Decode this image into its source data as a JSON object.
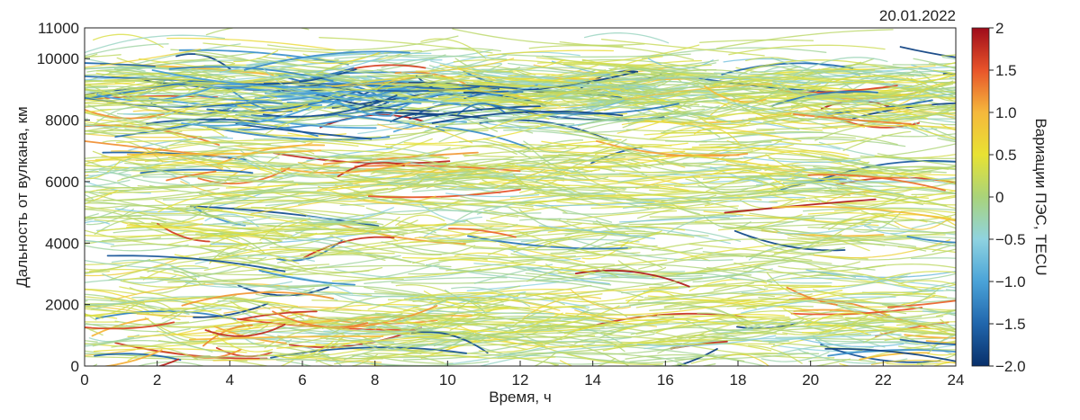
{
  "chart_data": {
    "type": "scatter",
    "style": "travel-time diagram, dense colored arcs",
    "date": "20.01.2022",
    "xlabel": "Время, ч",
    "ylabel": "Дальность от вулкана, км",
    "xlim": [
      0,
      24
    ],
    "ylim": [
      0,
      11000
    ],
    "x_ticks": [
      0,
      2,
      4,
      6,
      8,
      10,
      12,
      14,
      16,
      18,
      20,
      22,
      24
    ],
    "y_ticks": [
      0,
      2000,
      4000,
      6000,
      8000,
      10000,
      11000
    ],
    "colorbar": {
      "label": "Вариации ПЭС, TECU",
      "min": -2.0,
      "max": 2,
      "ticks": [
        "2",
        "1.5",
        "1.0",
        "0.5",
        "0",
        "−0.5",
        "−1.0",
        "−1.5",
        "−2.0"
      ],
      "colors": [
        "#08306b",
        "#2166ac",
        "#4aa3d8",
        "#8fd3e0",
        "#a9d37a",
        "#e8e233",
        "#f5b83c",
        "#e8542a",
        "#9e0b1a"
      ]
    },
    "grid": false,
    "dense_bands_km": [
      {
        "center": 1100,
        "spread": 700,
        "weight": 0.22
      },
      {
        "center": 4400,
        "spread": 1700,
        "weight": 0.3
      },
      {
        "center": 6400,
        "spread": 500,
        "weight": 0.12
      },
      {
        "center": 8900,
        "spread": 700,
        "weight": 0.36
      }
    ],
    "strong_negative_region": {
      "x": [
        2.5,
        11.5
      ],
      "y": [
        7600,
        9300
      ],
      "min_tecu": -1.9
    },
    "strong_positive_regions": [
      {
        "x": [
          0.5,
          6.5
        ],
        "y": [
          500,
          2000
        ],
        "max_tecu": 1.8
      },
      {
        "x": [
          2.5,
          7.5
        ],
        "y": [
          6000,
          7200
        ],
        "max_tecu": 1.4
      },
      {
        "x": [
          18.5,
          20.5
        ],
        "y": [
          8800,
          9200
        ],
        "max_tecu": 1.6
      },
      {
        "x": [
          21.5,
          24
        ],
        "y": [
          800,
          2300
        ],
        "max_tecu": 1.6
      }
    ]
  }
}
